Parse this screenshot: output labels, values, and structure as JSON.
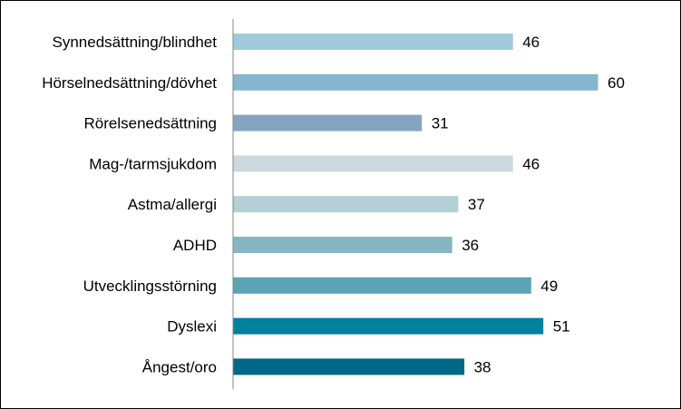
{
  "chart_data": {
    "type": "bar",
    "orientation": "horizontal",
    "title": "",
    "xlabel": "",
    "ylabel": "",
    "xlim": [
      0,
      70
    ],
    "grid": false,
    "legend": "none",
    "categories": [
      "Synnedsättning/blindhet",
      "Hörselnedsättning/dövhet",
      "Rörelsenedsättning",
      "Mag-/tarmsjukdom",
      "Astma/allergi",
      "ADHD",
      "Utvecklingsstörning",
      "Dyslexi",
      "Ångest/oro"
    ],
    "values": [
      46,
      60,
      31,
      46,
      37,
      36,
      49,
      51,
      38
    ],
    "colors": [
      "#9fcadb",
      "#86b6cd",
      "#85a4bf",
      "#cbd8dc",
      "#b5cfd6",
      "#86b6c3",
      "#5ca3b5",
      "#00819d",
      "#006887"
    ],
    "axis_color": "#868686"
  }
}
